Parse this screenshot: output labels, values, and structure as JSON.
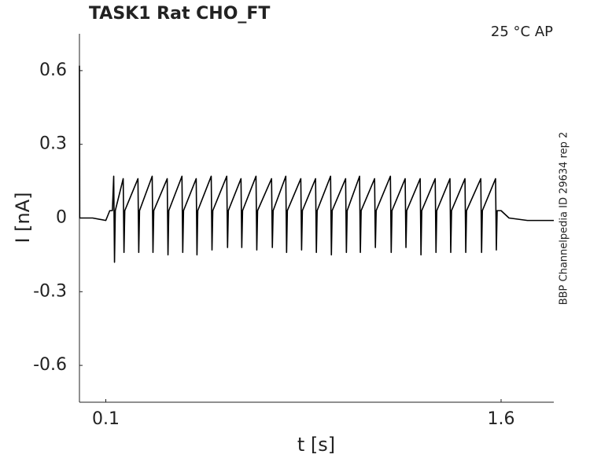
{
  "chart_data": {
    "type": "line",
    "title": "TASK1  Rat  CHO_FT",
    "annotation": "25 °C  AP",
    "side_label": "BBP Channelpedia ID 29634 rep 2",
    "xlabel": "t [s]",
    "ylabel": "I [nA]",
    "color": "#000000",
    "xlim": [
      0,
      1.8
    ],
    "ylim": [
      -0.75,
      0.75
    ],
    "xticks": [
      0.1,
      1.6
    ],
    "yticks": [
      -0.6,
      -0.3,
      0,
      0.3,
      0.6
    ],
    "grid": false,
    "x": [
      0,
      0.001,
      0.05,
      0.1,
      0.115,
      0.125,
      0.13,
      0.133,
      0.136,
      0.166,
      0.169,
      0.172,
      0.222,
      0.225,
      0.228,
      0.276,
      0.279,
      0.282,
      0.333,
      0.336,
      0.339,
      0.389,
      0.392,
      0.395,
      0.443,
      0.446,
      0.449,
      0.5,
      0.503,
      0.506,
      0.559,
      0.562,
      0.565,
      0.613,
      0.616,
      0.619,
      0.67,
      0.673,
      0.676,
      0.729,
      0.732,
      0.735,
      0.783,
      0.786,
      0.789,
      0.84,
      0.843,
      0.846,
      0.896,
      0.899,
      0.902,
      0.953,
      0.956,
      0.959,
      1.01,
      1.013,
      1.016,
      1.063,
      1.066,
      1.069,
      1.12,
      1.123,
      1.126,
      1.18,
      1.183,
      1.186,
      1.236,
      1.239,
      1.242,
      1.293,
      1.296,
      1.299,
      1.35,
      1.353,
      1.356,
      1.406,
      1.409,
      1.412,
      1.463,
      1.466,
      1.469,
      1.523,
      1.526,
      1.529,
      1.579,
      1.582,
      1.585,
      1.6,
      1.63,
      1.7,
      1.8
    ],
    "values": [
      0.62,
      0,
      0,
      -0.01,
      0.03,
      0.03,
      0.17,
      -0.18,
      0.03,
      0.16,
      -0.14,
      0.03,
      0.16,
      -0.14,
      0.03,
      0.17,
      -0.14,
      0.03,
      0.16,
      -0.15,
      0.03,
      0.17,
      -0.14,
      0.03,
      0.16,
      -0.15,
      0.03,
      0.17,
      -0.13,
      0.03,
      0.17,
      -0.12,
      0.03,
      0.16,
      -0.12,
      0.03,
      0.17,
      -0.13,
      0.03,
      0.16,
      -0.12,
      0.03,
      0.17,
      -0.14,
      0.03,
      0.16,
      -0.13,
      0.03,
      0.16,
      -0.14,
      0.03,
      0.17,
      -0.15,
      0.03,
      0.16,
      -0.14,
      0.03,
      0.17,
      -0.14,
      0.03,
      0.16,
      -0.12,
      0.03,
      0.17,
      -0.14,
      0.03,
      0.16,
      -0.12,
      0.03,
      0.16,
      -0.15,
      0.03,
      0.16,
      -0.14,
      0.03,
      0.16,
      -0.14,
      0.03,
      0.16,
      -0.14,
      0.03,
      0.16,
      -0.14,
      0.03,
      0.16,
      -0.13,
      0.03,
      0.03,
      0,
      -0.01,
      -0.01
    ]
  }
}
